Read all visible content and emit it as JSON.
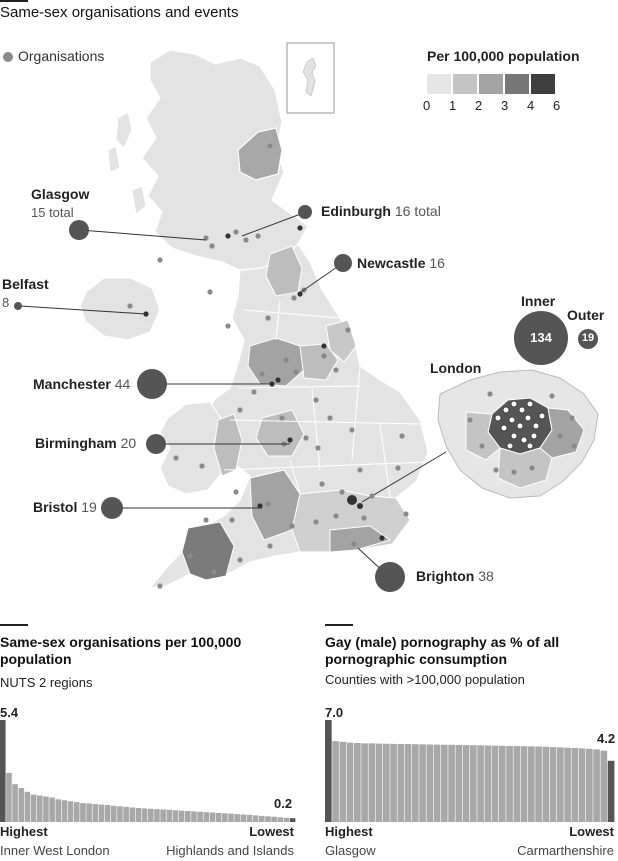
{
  "colors": {
    "scale": [
      "#e6e6e6",
      "#c4c4c4",
      "#a3a3a3",
      "#777777",
      "#3f3f3f"
    ],
    "bubble": "#555555",
    "bar": "#a8a8a8",
    "bar_end": "#555555"
  },
  "map": {
    "title": "Same-sex organisations and events",
    "dot_legend": "Organisations",
    "legend_title": "Per 100,000 population",
    "legend_ticks": [
      "0",
      "1",
      "2",
      "3",
      "4",
      "6"
    ],
    "cities": {
      "glasgow": {
        "name": "Glasgow",
        "note": "15 total"
      },
      "edinburgh": {
        "name": "Edinburgh",
        "note": "16 total"
      },
      "newcastle": {
        "name": "Newcastle",
        "note": "16"
      },
      "belfast": {
        "name": "Belfast",
        "note": "8"
      },
      "manchester": {
        "name": "Manchester",
        "note": "44"
      },
      "birmingham": {
        "name": "Birmingham",
        "note": "20"
      },
      "bristol": {
        "name": "Bristol",
        "note": "19"
      },
      "brighton": {
        "name": "Brighton",
        "note": "38"
      }
    },
    "london": {
      "label": "London",
      "inner_label": "Inner",
      "inner_value": "134",
      "outer_label": "Outer",
      "outer_value": "19"
    }
  },
  "chart_data": [
    {
      "type": "bar",
      "title": "Same-sex organisations per 100,000 population",
      "subtitle": "NUTS 2 regions",
      "max_label": "5.4",
      "min_label": "0.2",
      "left_label": "Highest",
      "left_name": "Inner West London",
      "right_label": "Lowest",
      "right_name": "Highlands and Islands",
      "ylim": [
        0,
        5.4
      ],
      "values": [
        5.4,
        2.6,
        2.0,
        1.8,
        1.6,
        1.45,
        1.4,
        1.35,
        1.3,
        1.2,
        1.15,
        1.1,
        1.05,
        1.0,
        0.98,
        0.95,
        0.92,
        0.9,
        0.86,
        0.83,
        0.8,
        0.77,
        0.74,
        0.72,
        0.7,
        0.68,
        0.66,
        0.64,
        0.62,
        0.6,
        0.58,
        0.56,
        0.54,
        0.52,
        0.5,
        0.48,
        0.46,
        0.44,
        0.42,
        0.4,
        0.38,
        0.35,
        0.32,
        0.3,
        0.28,
        0.25,
        0.22,
        0.2
      ]
    },
    {
      "type": "bar",
      "title": "Gay (male) pornography as % of all pornographic consumption",
      "subtitle": "Counties with >100,000 population",
      "max_label": "7.0",
      "min_label": "4.2",
      "left_label": "Highest",
      "left_name": "Glasgow",
      "right_label": "Lowest",
      "right_name": "Carmarthenshire",
      "ylim": [
        0,
        7.0
      ],
      "values": [
        7.0,
        5.55,
        5.5,
        5.45,
        5.42,
        5.4,
        5.4,
        5.38,
        5.37,
        5.36,
        5.35,
        5.35,
        5.34,
        5.33,
        5.32,
        5.31,
        5.3,
        5.3,
        5.29,
        5.28,
        5.27,
        5.26,
        5.25,
        5.24,
        5.23,
        5.22,
        5.21,
        5.2,
        5.19,
        5.18,
        5.16,
        5.14,
        5.12,
        5.1,
        5.08,
        5.05,
        5.02,
        4.98,
        4.9,
        4.2
      ]
    }
  ]
}
